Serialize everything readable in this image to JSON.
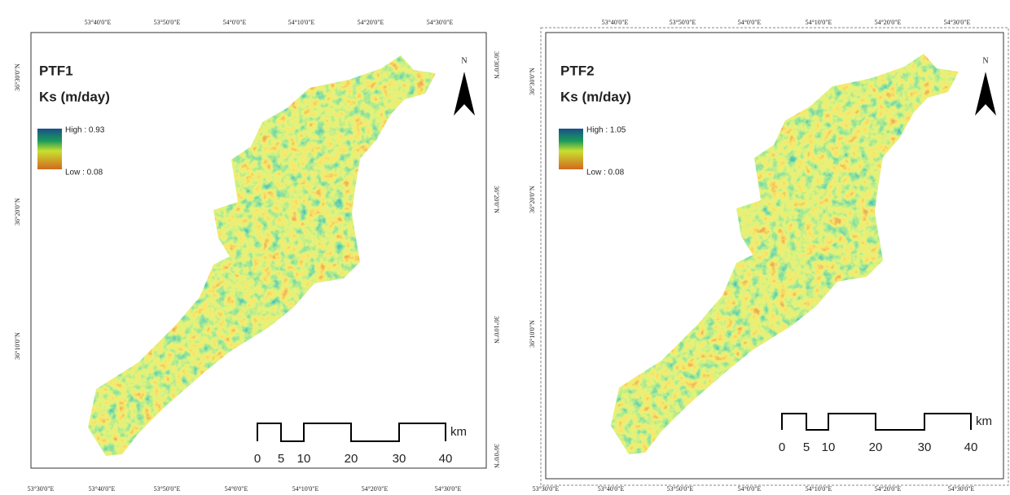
{
  "panels": [
    {
      "title": "PTF1",
      "subtitle": "Ks (m/day)",
      "legend_high": "High : 0.93",
      "legend_low": "Low : 0.08",
      "north": "N",
      "top_labels": [
        "53°40'0\"E",
        "53°50'0\"E",
        "54°0'0\"E",
        "54°10'0\"E",
        "54°20'0\"E",
        "54°30'0\"E"
      ],
      "bottom_labels": [
        "53°30'0\"E",
        "53°40'0\"E",
        "53°50'0\"E",
        "54°0'0\"E",
        "54°10'0\"E",
        "54°20'0\"E",
        "54°30'0\"E"
      ],
      "left_labels": [
        "36°30'0\"N",
        "36°20'0\"N",
        "36°10'0\"N"
      ],
      "right_labels": [
        "36°30'0\"N",
        "36°20'0\"N",
        "36°10'0\"N",
        "36°0'0\"N"
      ],
      "scale_labels": [
        "0",
        "5",
        "10",
        "20",
        "30",
        "40"
      ],
      "scale_unit": "km"
    },
    {
      "title": "PTF2",
      "subtitle": "Ks (m/day)",
      "legend_high": "High : 1.05",
      "legend_low": "Low : 0.08",
      "north": "N",
      "top_labels": [
        "53°40'0\"E",
        "53°50'0\"E",
        "54°0'0\"E",
        "54°10'0\"E",
        "54°20'0\"E",
        "54°30'0\"E"
      ],
      "bottom_labels": [
        "53°30'0\"E",
        "53°40'0\"E",
        "53°50'0\"E",
        "54°0'0\"E",
        "54°10'0\"E",
        "54°20'0\"E",
        "54°30'0\"E"
      ],
      "left_labels": [
        "36°30'0\"N",
        "36°20'0\"N",
        "36°10'0\"N"
      ],
      "scale_labels": [
        "0",
        "5",
        "10",
        "20",
        "30",
        "40"
      ],
      "scale_unit": "km"
    }
  ]
}
